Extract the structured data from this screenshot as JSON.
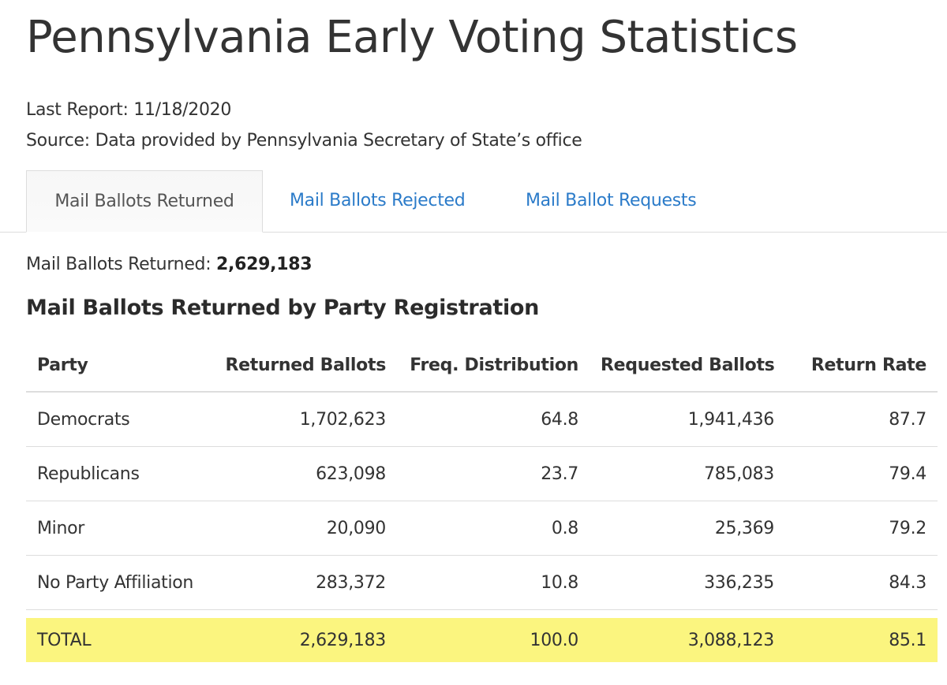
{
  "page": {
    "title": "Pennsylvania Early Voting Statistics",
    "last_report_label": "Last Report:",
    "last_report_date": "11/18/2020",
    "source_label": "Source:",
    "source_text": "Data provided by Pennsylvania Secretary of State’s office"
  },
  "tabs": [
    {
      "label": "Mail Ballots Returned",
      "active": true
    },
    {
      "label": "Mail Ballots Rejected",
      "active": false
    },
    {
      "label": "Mail Ballot Requests",
      "active": false
    }
  ],
  "summary": {
    "label": "Mail Ballots Returned:",
    "value": "2,629,183"
  },
  "section_title": "Mail Ballots Returned by Party Registration",
  "table": {
    "headers": [
      "Party",
      "Returned Ballots",
      "Freq. Distribution",
      "Requested Ballots",
      "Return Rate"
    ],
    "rows": [
      [
        "Democrats",
        "1,702,623",
        "64.8",
        "1,941,436",
        "87.7"
      ],
      [
        "Republicans",
        "623,098",
        "23.7",
        "785,083",
        "79.4"
      ],
      [
        "Minor",
        "20,090",
        "0.8",
        "25,369",
        "79.2"
      ],
      [
        "No Party Affiliation",
        "283,372",
        "10.8",
        "336,235",
        "84.3"
      ]
    ],
    "total": [
      "TOTAL",
      "2,629,183",
      "100.0",
      "3,088,123",
      "85.1"
    ]
  },
  "colors": {
    "link": "#2b7bc9",
    "highlight": "#fbf57f",
    "text": "#333333",
    "border": "#dddddd"
  }
}
